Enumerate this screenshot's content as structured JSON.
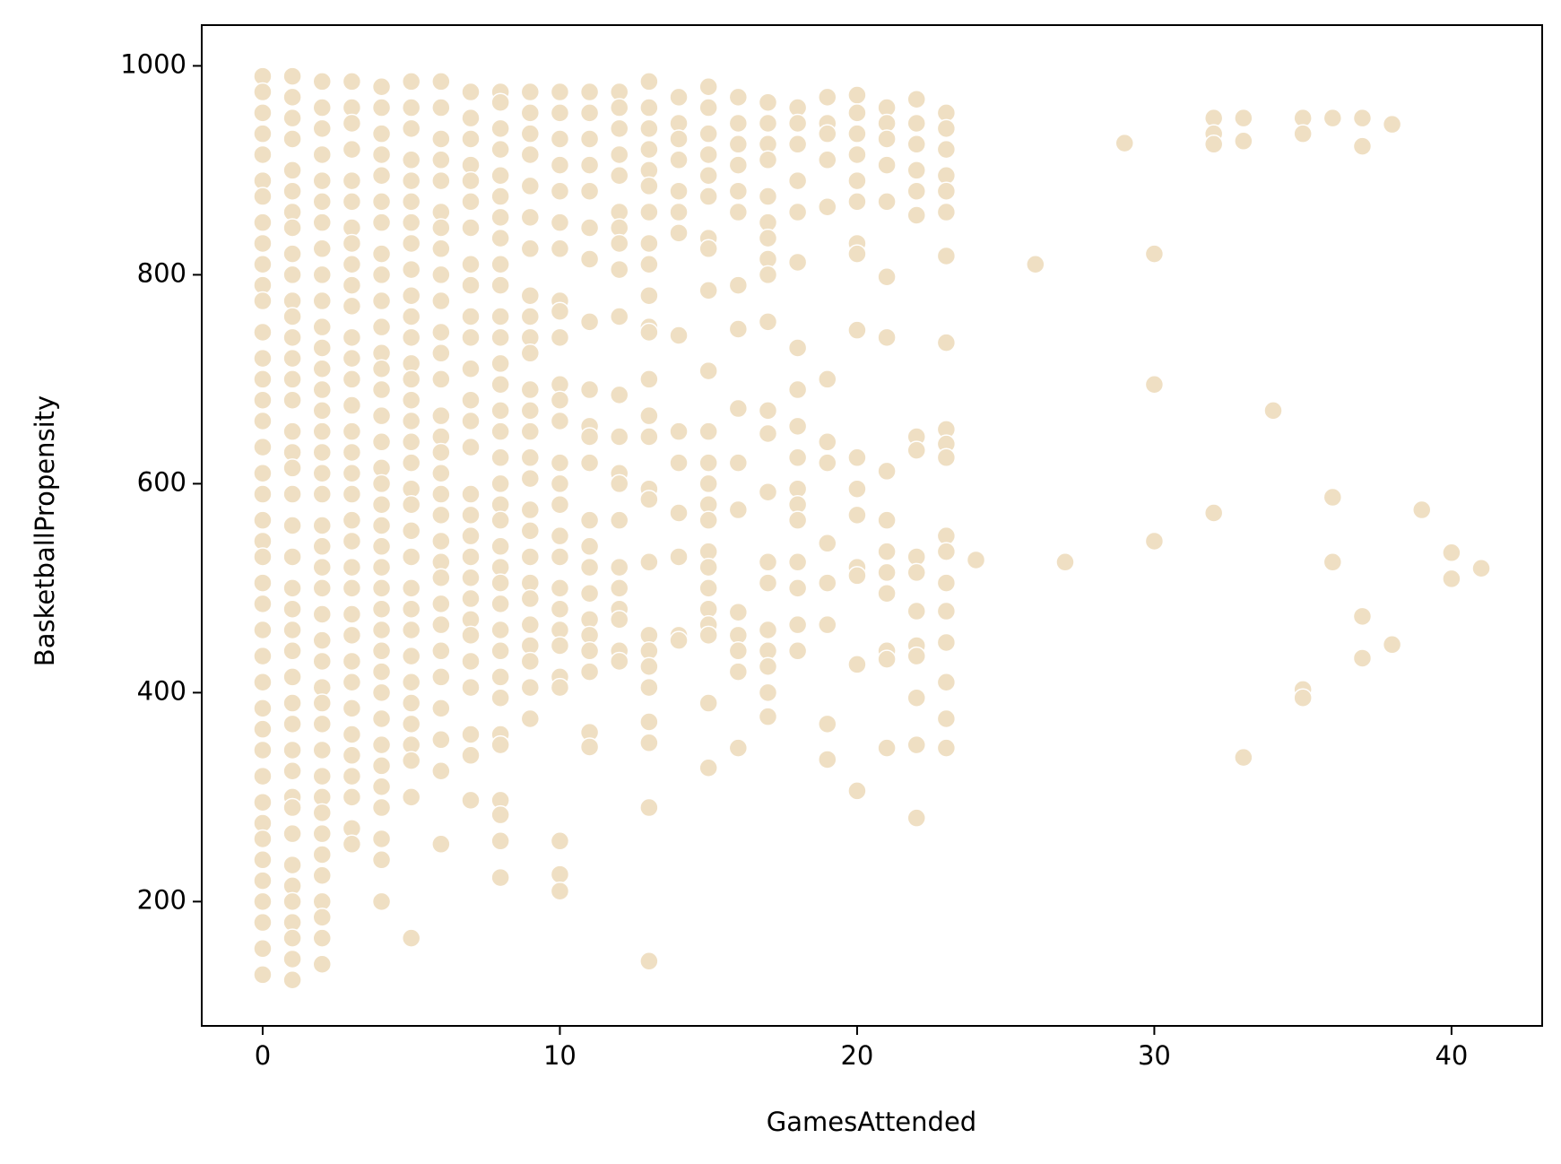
{
  "chart_data": {
    "type": "scatter",
    "xlabel": "GamesAttended",
    "ylabel": "BasketballPropensity",
    "color": "#efdfc3",
    "xlim": [
      -2.05,
      43.05
    ],
    "ylim": [
      81,
      1039
    ],
    "xticks": [
      0,
      10,
      20,
      30,
      40
    ],
    "yticks": [
      200,
      400,
      600,
      800,
      1000
    ],
    "x": [
      0,
      0,
      0,
      0,
      0,
      0,
      0,
      0,
      0,
      0,
      0,
      0,
      0,
      0,
      0,
      0,
      0,
      0,
      0,
      0,
      0,
      0,
      0,
      0,
      0,
      0,
      0,
      0,
      0,
      0,
      0,
      0,
      0,
      0,
      0,
      0,
      0,
      0,
      0,
      0,
      0,
      1,
      1,
      1,
      1,
      1,
      1,
      1,
      1,
      1,
      1,
      1,
      1,
      1,
      1,
      1,
      1,
      1,
      1,
      1,
      1,
      1,
      1,
      1,
      1,
      1,
      1,
      1,
      1,
      1,
      1,
      1,
      1,
      1,
      1,
      1,
      1,
      1,
      1,
      1,
      1,
      1,
      2,
      2,
      2,
      2,
      2,
      2,
      2,
      2,
      2,
      2,
      2,
      2,
      2,
      2,
      2,
      2,
      2,
      2,
      2,
      2,
      2,
      2,
      2,
      2,
      2,
      2,
      2,
      2,
      2,
      2,
      2,
      2,
      2,
      2,
      2,
      2,
      2,
      2,
      2,
      2,
      3,
      3,
      3,
      3,
      3,
      3,
      3,
      3,
      3,
      3,
      3,
      3,
      3,
      3,
      3,
      3,
      3,
      3,
      3,
      3,
      3,
      3,
      3,
      3,
      3,
      3,
      3,
      3,
      3,
      3,
      3,
      3,
      3,
      3,
      4,
      4,
      4,
      4,
      4,
      4,
      4,
      4,
      4,
      4,
      4,
      4,
      4,
      4,
      4,
      4,
      4,
      4,
      4,
      4,
      4,
      4,
      4,
      4,
      4,
      4,
      4,
      4,
      4,
      4,
      4,
      4,
      4,
      4,
      4,
      4,
      5,
      5,
      5,
      5,
      5,
      5,
      5,
      5,
      5,
      5,
      5,
      5,
      5,
      5,
      5,
      5,
      5,
      5,
      5,
      5,
      5,
      5,
      5,
      5,
      5,
      5,
      5,
      5,
      5,
      5,
      5,
      5,
      5,
      6,
      6,
      6,
      6,
      6,
      6,
      6,
      6,
      6,
      6,
      6,
      6,
      6,
      6,
      6,
      6,
      6,
      6,
      6,
      6,
      6,
      6,
      6,
      6,
      6,
      6,
      6,
      6,
      6,
      6,
      7,
      7,
      7,
      7,
      7,
      7,
      7,
      7,
      7,
      7,
      7,
      7,
      7,
      7,
      7,
      7,
      7,
      7,
      7,
      7,
      7,
      7,
      7,
      7,
      7,
      7,
      7,
      7,
      8,
      8,
      8,
      8,
      8,
      8,
      8,
      8,
      8,
      8,
      8,
      8,
      8,
      8,
      8,
      8,
      8,
      8,
      8,
      8,
      8,
      8,
      8,
      8,
      8,
      8,
      8,
      8,
      8,
      8,
      8,
      8,
      8,
      8,
      9,
      9,
      9,
      9,
      9,
      9,
      9,
      9,
      9,
      9,
      9,
      9,
      9,
      9,
      9,
      9,
      9,
      9,
      9,
      9,
      9,
      9,
      9,
      9,
      9,
      9,
      10,
      10,
      10,
      10,
      10,
      10,
      10,
      10,
      10,
      10,
      10,
      10,
      10,
      10,
      10,
      10,
      10,
      10,
      10,
      10,
      10,
      10,
      10,
      10,
      10,
      10,
      10,
      11,
      11,
      11,
      11,
      11,
      11,
      11,
      11,
      11,
      11,
      11,
      11,
      11,
      11,
      11,
      11,
      11,
      11,
      11,
      11,
      11,
      11,
      12,
      12,
      12,
      12,
      12,
      12,
      12,
      12,
      12,
      12,
      12,
      12,
      12,
      12,
      12,
      12,
      12,
      12,
      12,
      12,
      12,
      13,
      13,
      13,
      13,
      13,
      13,
      13,
      13,
      13,
      13,
      13,
      13,
      13,
      13,
      13,
      13,
      13,
      13,
      13,
      13,
      13,
      13,
      13,
      13,
      13,
      13,
      14,
      14,
      14,
      14,
      14,
      14,
      14,
      14,
      14,
      14,
      14,
      14,
      14,
      14,
      15,
      15,
      15,
      15,
      15,
      15,
      15,
      15,
      15,
      15,
      15,
      15,
      15,
      15,
      15,
      15,
      15,
      15,
      15,
      15,
      15,
      15,
      15,
      16,
      16,
      16,
      16,
      16,
      16,
      16,
      16,
      16,
      16,
      16,
      16,
      16,
      16,
      16,
      16,
      17,
      17,
      17,
      17,
      17,
      17,
      17,
      17,
      17,
      17,
      17,
      17,
      17,
      17,
      17,
      17,
      17,
      17,
      17,
      17,
      18,
      18,
      18,
      18,
      18,
      18,
      18,
      18,
      18,
      18,
      18,
      18,
      18,
      18,
      18,
      18,
      18,
      19,
      19,
      19,
      19,
      19,
      19,
      19,
      19,
      19,
      19,
      19,
      19,
      19,
      20,
      20,
      20,
      20,
      20,
      20,
      20,
      20,
      20,
      20,
      20,
      20,
      20,
      20,
      20,
      20,
      21,
      21,
      21,
      21,
      21,
      21,
      21,
      21,
      21,
      21,
      21,
      21,
      21,
      21,
      21,
      22,
      22,
      22,
      22,
      22,
      22,
      22,
      22,
      22,
      22,
      22,
      22,
      22,
      22,
      22,
      22,
      23,
      23,
      23,
      23,
      23,
      23,
      23,
      23,
      23,
      23,
      23,
      23,
      23,
      23,
      23,
      23,
      23,
      23,
      23,
      24,
      26,
      27,
      29,
      30,
      30,
      30,
      32,
      32,
      32,
      32,
      33,
      33,
      33,
      34,
      35,
      35,
      35,
      35,
      36,
      36,
      36,
      37,
      37,
      37,
      37,
      38,
      38,
      39,
      40,
      40,
      41
    ],
    "values": [
      990,
      975,
      955,
      935,
      915,
      890,
      875,
      850,
      830,
      810,
      790,
      775,
      745,
      720,
      700,
      680,
      660,
      635,
      610,
      590,
      565,
      545,
      530,
      505,
      485,
      460,
      435,
      410,
      385,
      365,
      345,
      320,
      295,
      275,
      260,
      240,
      220,
      200,
      180,
      155,
      130,
      990,
      970,
      950,
      930,
      900,
      880,
      860,
      845,
      820,
      800,
      775,
      760,
      740,
      720,
      700,
      680,
      650,
      630,
      615,
      590,
      560,
      530,
      500,
      480,
      460,
      440,
      415,
      390,
      370,
      345,
      325,
      300,
      290,
      265,
      235,
      215,
      200,
      180,
      165,
      145,
      125,
      985,
      960,
      940,
      915,
      890,
      870,
      850,
      825,
      800,
      775,
      750,
      730,
      710,
      690,
      670,
      650,
      630,
      610,
      590,
      560,
      540,
      520,
      500,
      475,
      450,
      430,
      405,
      390,
      370,
      345,
      320,
      300,
      285,
      265,
      245,
      225,
      200,
      185,
      165,
      140,
      985,
      960,
      945,
      920,
      890,
      870,
      845,
      830,
      810,
      790,
      770,
      740,
      720,
      700,
      675,
      650,
      630,
      610,
      590,
      565,
      545,
      520,
      500,
      475,
      455,
      430,
      410,
      385,
      360,
      340,
      320,
      300,
      270,
      255,
      980,
      960,
      935,
      915,
      895,
      870,
      850,
      820,
      800,
      775,
      750,
      725,
      710,
      690,
      665,
      640,
      615,
      600,
      580,
      560,
      540,
      520,
      500,
      480,
      460,
      440,
      420,
      400,
      375,
      350,
      330,
      310,
      290,
      260,
      240,
      200,
      985,
      960,
      940,
      910,
      890,
      870,
      850,
      830,
      805,
      780,
      760,
      740,
      715,
      700,
      680,
      660,
      640,
      620,
      595,
      580,
      555,
      530,
      500,
      480,
      460,
      435,
      410,
      390,
      370,
      350,
      335,
      300,
      165,
      985,
      960,
      930,
      910,
      890,
      860,
      845,
      825,
      800,
      775,
      745,
      725,
      700,
      665,
      645,
      630,
      610,
      590,
      570,
      545,
      525,
      510,
      485,
      465,
      440,
      415,
      385,
      355,
      325,
      255,
      975,
      950,
      930,
      905,
      890,
      870,
      845,
      810,
      790,
      760,
      740,
      710,
      680,
      660,
      635,
      590,
      570,
      550,
      530,
      510,
      490,
      470,
      455,
      430,
      405,
      360,
      340,
      297,
      975,
      965,
      940,
      920,
      895,
      875,
      855,
      835,
      810,
      790,
      760,
      740,
      715,
      695,
      670,
      650,
      625,
      600,
      580,
      565,
      540,
      520,
      505,
      485,
      460,
      440,
      415,
      395,
      360,
      350,
      297,
      283,
      258,
      223,
      975,
      955,
      935,
      915,
      885,
      855,
      825,
      780,
      760,
      740,
      725,
      690,
      670,
      650,
      625,
      605,
      575,
      555,
      530,
      505,
      490,
      465,
      445,
      430,
      405,
      375,
      975,
      955,
      930,
      905,
      880,
      850,
      825,
      775,
      765,
      740,
      695,
      680,
      660,
      620,
      600,
      580,
      550,
      530,
      500,
      480,
      460,
      445,
      415,
      405,
      258,
      226,
      210,
      975,
      955,
      930,
      905,
      880,
      845,
      815,
      755,
      690,
      655,
      645,
      620,
      565,
      540,
      520,
      495,
      470,
      455,
      440,
      420,
      362,
      348,
      975,
      960,
      940,
      915,
      895,
      860,
      845,
      830,
      805,
      760,
      685,
      645,
      610,
      600,
      565,
      520,
      500,
      480,
      470,
      440,
      430,
      985,
      960,
      940,
      920,
      900,
      885,
      860,
      830,
      810,
      780,
      750,
      745,
      700,
      665,
      645,
      595,
      585,
      525,
      455,
      440,
      425,
      405,
      372,
      352,
      290,
      143,
      970,
      945,
      930,
      910,
      880,
      860,
      840,
      742,
      650,
      620,
      572,
      530,
      455,
      450,
      980,
      960,
      935,
      915,
      895,
      875,
      835,
      825,
      785,
      708,
      650,
      620,
      600,
      580,
      565,
      535,
      520,
      500,
      480,
      465,
      455,
      390,
      328,
      970,
      945,
      925,
      905,
      880,
      860,
      790,
      748,
      672,
      620,
      575,
      477,
      455,
      440,
      420,
      347,
      965,
      945,
      925,
      910,
      875,
      850,
      835,
      815,
      800,
      755,
      670,
      648,
      592,
      525,
      505,
      460,
      440,
      425,
      400,
      377,
      960,
      945,
      925,
      890,
      860,
      812,
      730,
      690,
      655,
      625,
      595,
      580,
      565,
      525,
      500,
      465,
      440,
      970,
      945,
      935,
      910,
      865,
      700,
      640,
      620,
      543,
      505,
      465,
      370,
      336,
      972,
      955,
      935,
      915,
      890,
      870,
      830,
      820,
      747,
      625,
      595,
      570,
      520,
      512,
      427,
      306,
      960,
      945,
      930,
      905,
      870,
      798,
      740,
      612,
      565,
      535,
      515,
      495,
      440,
      432,
      347,
      968,
      945,
      925,
      900,
      880,
      857,
      645,
      632,
      530,
      515,
      478,
      445,
      435,
      395,
      350,
      280,
      955,
      940,
      920,
      895,
      880,
      860,
      818,
      735,
      652,
      638,
      625,
      550,
      535,
      505,
      478,
      448,
      410,
      375,
      347,
      527,
      810,
      525,
      926,
      820,
      695,
      545,
      950,
      935,
      925,
      572,
      950,
      928,
      338,
      670,
      950,
      935,
      403,
      395,
      950,
      587,
      525,
      950,
      923,
      473,
      433,
      944,
      446,
      575,
      534,
      509,
      519
    ]
  }
}
